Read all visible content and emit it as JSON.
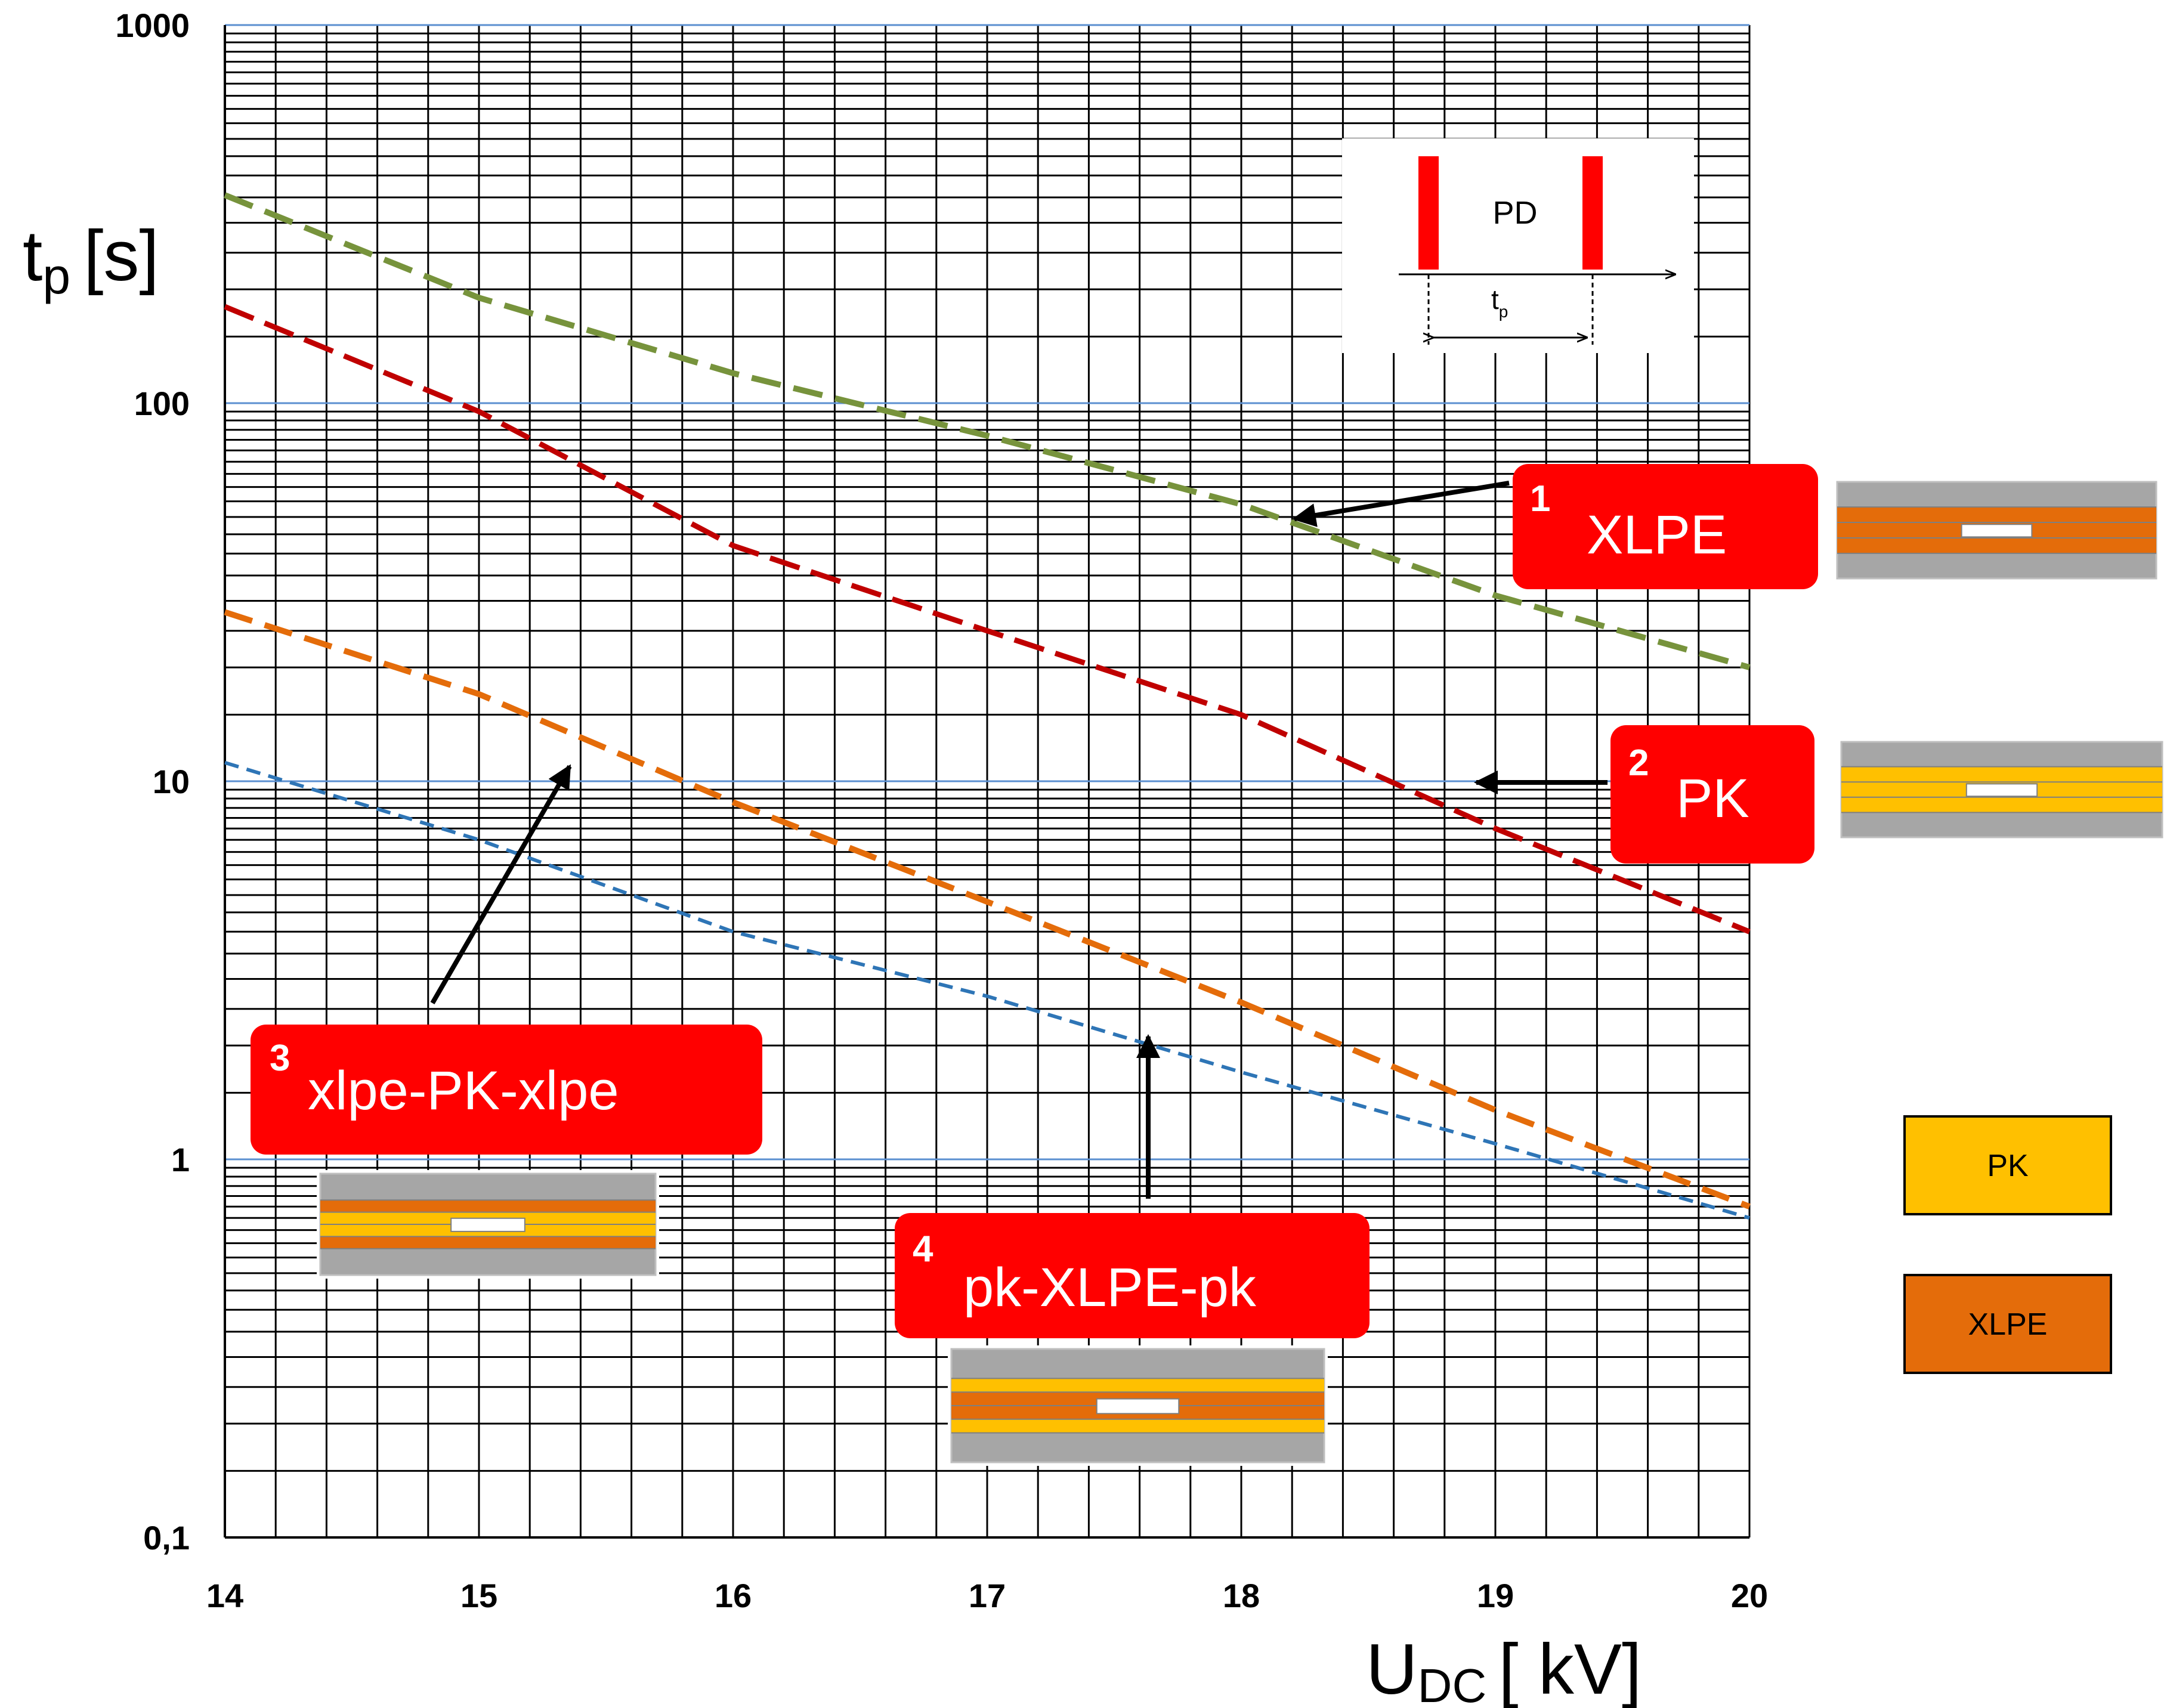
{
  "chart_data": {
    "type": "line",
    "yscale": "log",
    "xlabel_main": "U",
    "xlabel_sub": "DC",
    "xlabel_unit": "[ kV]",
    "ylabel_main": "t",
    "ylabel_sub": "p",
    "ylabel_unit": "[s]",
    "xlim": [
      14,
      20
    ],
    "ylim": [
      0.1,
      1000
    ],
    "x_ticks": [
      14,
      15,
      16,
      17,
      18,
      19,
      20
    ],
    "x_tick_labels": [
      "14",
      "15",
      "16",
      "17",
      "18",
      "19",
      "20"
    ],
    "y_ticks": [
      0.1,
      1,
      10,
      100,
      1000
    ],
    "y_tick_labels": [
      "0,1",
      "1",
      "10",
      "100",
      "1000"
    ],
    "grid": true,
    "series": [
      {
        "id": "xlpe",
        "name": "XLPE",
        "color": "#77933c",
        "x": [
          14,
          15,
          16,
          17,
          18,
          19,
          20
        ],
        "y": [
          355,
          190,
          120,
          82,
          54,
          31,
          20
        ]
      },
      {
        "id": "pk",
        "name": "PK",
        "color": "#c00000",
        "x": [
          14,
          15,
          16,
          17,
          18,
          19,
          20
        ],
        "y": [
          180,
          95,
          42,
          25,
          15,
          7.5,
          4
        ]
      },
      {
        "id": "xpx",
        "name": "xlpe-PK-xlpe",
        "color": "#e46c0a",
        "x": [
          14,
          15,
          16,
          17,
          18,
          19,
          20
        ],
        "y": [
          28,
          17,
          8.8,
          4.8,
          2.6,
          1.35,
          0.75
        ]
      },
      {
        "id": "pxp",
        "name": "pk-XLPE-pk",
        "color": "#2e75b6",
        "x": [
          14,
          15,
          16,
          17,
          18,
          19,
          20
        ],
        "y": [
          11.2,
          7,
          4,
          2.7,
          1.7,
          1.1,
          0.7
        ]
      }
    ],
    "annotations": [
      {
        "id": "a1",
        "number": "1",
        "label": "XLPE"
      },
      {
        "id": "a2",
        "number": "2",
        "label": "PK"
      },
      {
        "id": "a3",
        "number": "3",
        "label": "xlpe-PK-xlpe"
      },
      {
        "id": "a4",
        "number": "4",
        "label": "pk-XLPE-pk"
      }
    ],
    "inset": {
      "label": "PD",
      "interval_label_main": "t",
      "interval_label_sub": "p"
    },
    "legend": [
      {
        "label": "PK",
        "color": "#ffc000"
      },
      {
        "label": "XLPE",
        "color": "#e46c0a"
      }
    ]
  }
}
